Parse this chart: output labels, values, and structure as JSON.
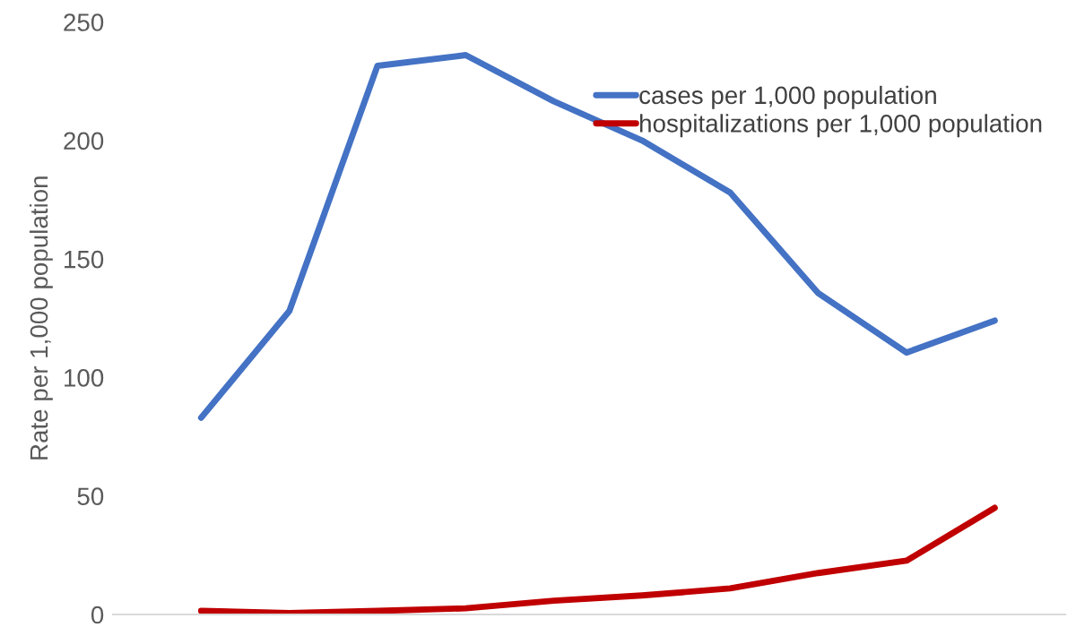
{
  "chart_data": {
    "type": "line",
    "ylabel": "Rate per 1,000 population",
    "categories": [
      null,
      null,
      null,
      null,
      null,
      null,
      null,
      null,
      null,
      null
    ],
    "series": [
      {
        "name": "cases per 1,000 population",
        "color": "#4472c4",
        "values": [
          83,
          128,
          231.5,
          236,
          216.5,
          200,
          178,
          135.5,
          110.5,
          124
        ]
      },
      {
        "name": "hospitalizations per 1,000 population",
        "color": "#c00000",
        "values": [
          1.5,
          0.6,
          1.5,
          2.6,
          5.8,
          8,
          11,
          17.5,
          22.7,
          45
        ]
      }
    ],
    "ylim": [
      0,
      250
    ],
    "yticks": [
      0,
      50,
      100,
      150,
      200,
      250
    ],
    "grid": false,
    "legend": "top right",
    "marker": "none",
    "line_style": "solid"
  }
}
